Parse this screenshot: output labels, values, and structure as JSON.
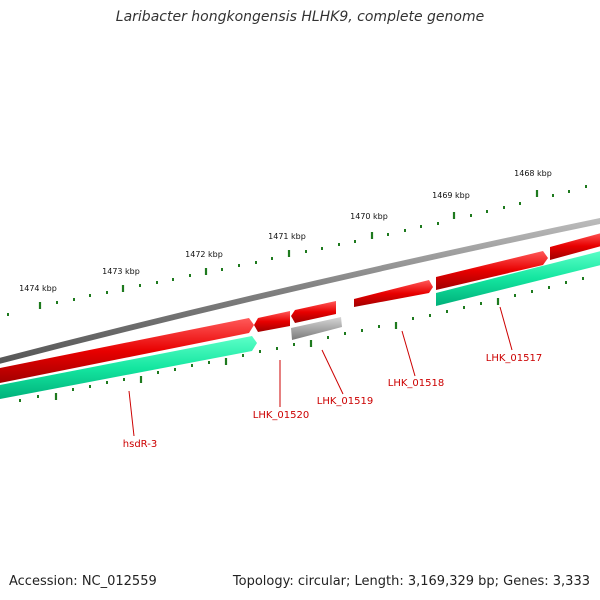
{
  "title": "Laribacter hongkongensis HLHK9, complete genome",
  "footer": {
    "accession": "Accession: NC_012559",
    "summary": "Topology: circular; Length: 3,169,329 bp; Genes: 3,333"
  },
  "colors": {
    "forward_gene": "#e80000",
    "reverse_gene": "#14e6a0",
    "rna_gene": "#a8a8a8",
    "genome_ring": "#808080",
    "tick": "#1e7a1e",
    "label": "#cc0000"
  },
  "ruler": [
    {
      "label": "1474 kbp"
    },
    {
      "label": "1473 kbp"
    },
    {
      "label": "1472 kbp"
    },
    {
      "label": "1471 kbp"
    },
    {
      "label": "1470 kbp"
    },
    {
      "label": "1469 kbp"
    },
    {
      "label": "1468 kbp"
    }
  ],
  "gene_labels": [
    {
      "name": "hsdR-3"
    },
    {
      "name": "LHK_01520"
    },
    {
      "name": "LHK_01519"
    },
    {
      "name": "LHK_01518"
    },
    {
      "name": "LHK_01517"
    }
  ]
}
